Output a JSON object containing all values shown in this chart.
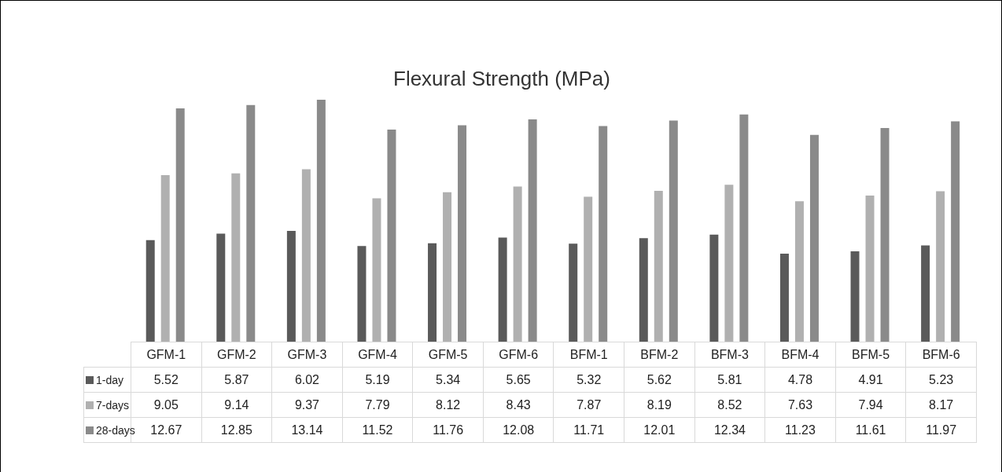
{
  "chart_data": {
    "type": "bar",
    "title": "Flexural Strength (MPa)",
    "categories": [
      "GFM-1",
      "GFM-2",
      "GFM-3",
      "GFM-4",
      "GFM-5",
      "GFM-6",
      "BFM-1",
      "BFM-2",
      "BFM-3",
      "BFM-4",
      "BFM-5",
      "BFM-6"
    ],
    "series": [
      {
        "name": "1-day",
        "color": "#5a5a5a",
        "values": [
          5.52,
          5.87,
          6.02,
          5.19,
          5.34,
          5.65,
          5.32,
          5.62,
          5.81,
          4.78,
          4.91,
          5.23
        ]
      },
      {
        "name": "7-days",
        "color": "#b0b0b0",
        "values": [
          9.05,
          9.14,
          9.37,
          7.79,
          8.12,
          8.43,
          7.87,
          8.19,
          8.52,
          7.63,
          7.94,
          8.17
        ]
      },
      {
        "name": "28-days",
        "color": "#8a8a8a",
        "values": [
          12.67,
          12.85,
          13.14,
          11.52,
          11.76,
          12.08,
          11.71,
          12.01,
          12.34,
          11.23,
          11.61,
          11.97
        ]
      }
    ],
    "data_labels": true,
    "legend": "bottom"
  }
}
